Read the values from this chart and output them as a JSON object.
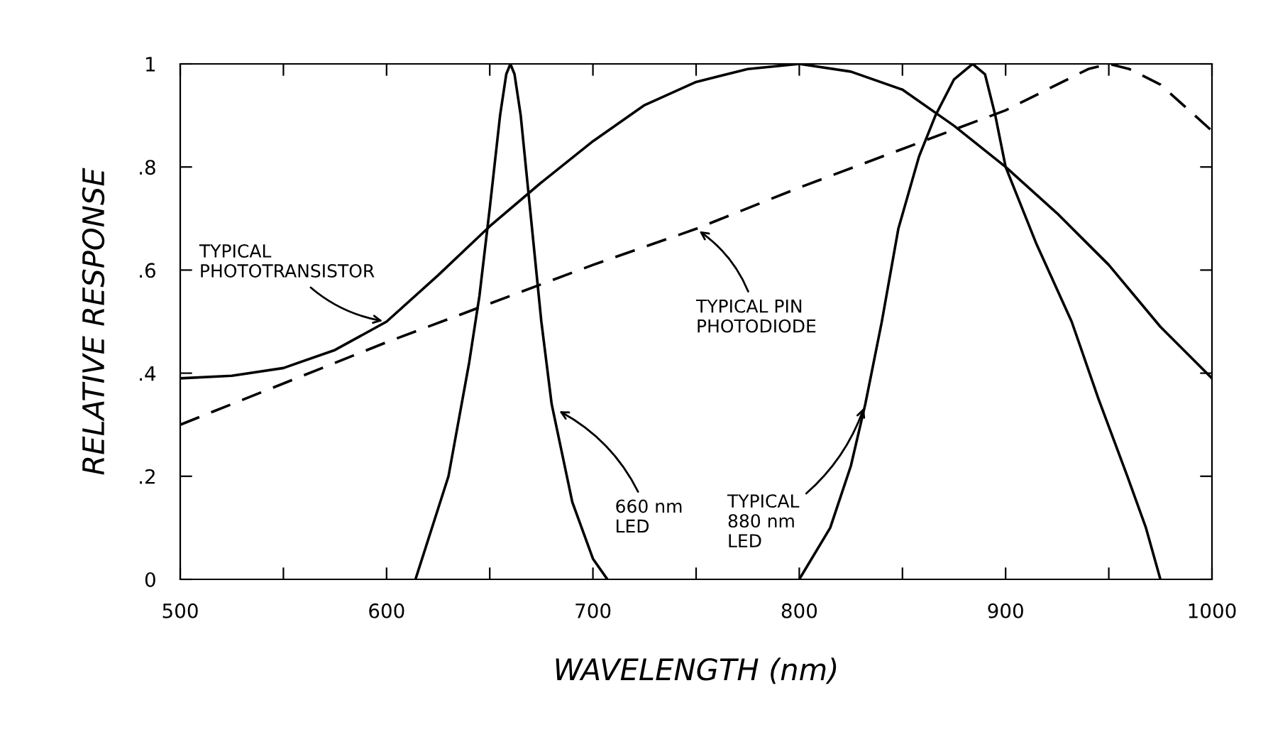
{
  "chart_data": {
    "type": "line",
    "xlabel": "WAVELENGTH (nm)",
    "ylabel": "RELATIVE RESPONSE",
    "xlim": [
      500,
      1000
    ],
    "ylim": [
      0,
      1
    ],
    "xticks": [
      500,
      {
        "value": 550,
        "label": null
      },
      600,
      {
        "value": 650,
        "label": null
      },
      700,
      {
        "value": 750,
        "label": null
      },
      800,
      {
        "value": 850,
        "label": null
      },
      900,
      {
        "value": 950,
        "label": null
      },
      1000
    ],
    "yticks": [
      {
        "value": 0,
        "label": "0"
      },
      {
        "value": 0.2,
        "label": ".2"
      },
      {
        "value": 0.4,
        "label": ".4"
      },
      {
        "value": 0.6,
        "label": ".6"
      },
      {
        "value": 0.8,
        "label": ".8"
      },
      {
        "value": 1,
        "label": "1"
      }
    ],
    "grid": false,
    "legend": false,
    "marker": "none",
    "series": [
      {
        "color": "#000000",
        "line_style": "solid",
        "x": [
          500,
          525,
          550,
          575,
          600,
          625,
          650,
          675,
          700,
          725,
          750,
          775,
          800,
          825,
          850,
          875,
          900,
          925,
          950,
          975,
          1000
        ],
        "values": [
          0.39,
          0.395,
          0.41,
          0.445,
          0.5,
          0.59,
          0.685,
          0.77,
          0.85,
          0.92,
          0.965,
          0.99,
          1.0,
          0.985,
          0.95,
          0.88,
          0.8,
          0.71,
          0.61,
          0.49,
          0.39
        ]
      },
      {
        "color": "#000000",
        "line_style": "dashed",
        "x": [
          500,
          600,
          700,
          750,
          800,
          900,
          940,
          950,
          960,
          975,
          1000
        ],
        "values": [
          0.3,
          0.46,
          0.61,
          0.68,
          0.76,
          0.91,
          0.99,
          1.0,
          0.99,
          0.96,
          0.87
        ]
      },
      {
        "color": "#000000",
        "line_style": "solid",
        "x": [
          614,
          630,
          640,
          645,
          650,
          655,
          658,
          660,
          662,
          665,
          670,
          675,
          680,
          690,
          700,
          707
        ],
        "values": [
          0,
          0.2,
          0.42,
          0.55,
          0.72,
          0.9,
          0.98,
          1.0,
          0.98,
          0.9,
          0.7,
          0.5,
          0.34,
          0.15,
          0.04,
          0
        ]
      },
      {
        "color": "#000000",
        "line_style": "solid",
        "x": [
          800,
          815,
          825,
          832,
          840,
          848,
          858,
          866,
          875,
          884,
          890,
          895,
          900,
          915,
          932,
          945,
          959,
          968,
          975
        ],
        "values": [
          0,
          0.1,
          0.22,
          0.34,
          0.5,
          0.68,
          0.82,
          0.9,
          0.97,
          1.0,
          0.98,
          0.9,
          0.8,
          0.65,
          0.5,
          0.35,
          0.2,
          0.1,
          0
        ]
      }
    ],
    "annotations": [
      {
        "text": "TYPICAL\nPHOTOTRANSISTOR",
        "x": 600,
        "y": 0.5
      },
      {
        "text": "TYPICAL PIN\nPHOTODIODE",
        "x": 750,
        "y": 0.68
      },
      {
        "text": "660 nm\nLED",
        "x": 682,
        "y": 0.33
      },
      {
        "text": "TYPICAL\n880 nm\nLED",
        "x": 832,
        "y": 0.34
      }
    ]
  }
}
